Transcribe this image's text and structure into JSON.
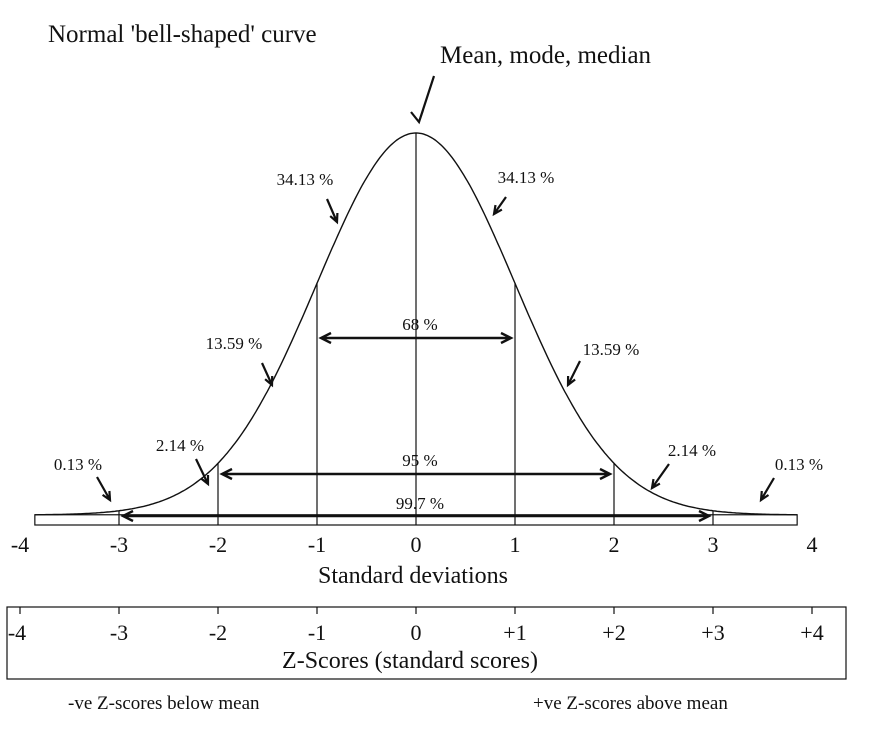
{
  "title": "Normal 'bell-shaped' curve",
  "peak_label": "Mean, mode, median",
  "region_labels": [
    {
      "text": "34.13 %",
      "side": "left",
      "at": -0.5
    },
    {
      "text": "34.13 %",
      "side": "right",
      "at": 0.5
    },
    {
      "text": "13.59 %",
      "side": "left",
      "at": -1.5
    },
    {
      "text": "13.59 %",
      "side": "right",
      "at": 1.5
    },
    {
      "text": "2.14 %",
      "side": "left",
      "at": -2.5
    },
    {
      "text": "2.14 %",
      "side": "right",
      "at": 2.5
    },
    {
      "text": "0.13 %",
      "side": "left",
      "at": -3.5
    },
    {
      "text": "0.13 %",
      "side": "right",
      "at": 3.5
    }
  ],
  "spans": [
    {
      "text": "68 %",
      "from": -1,
      "to": 1
    },
    {
      "text": "95 %",
      "from": -2,
      "to": 2
    },
    {
      "text": "99.7 %",
      "from": -3,
      "to": 3
    }
  ],
  "sd_ticks": [
    "-4",
    "-3",
    "-2",
    "-1",
    "0",
    "1",
    "2",
    "3",
    "4"
  ],
  "sd_axis_label": "Standard deviations",
  "z_ticks": [
    "-4",
    "-3",
    "-2",
    "-1",
    "0",
    "+1",
    "+2",
    "+3",
    "+4"
  ],
  "z_axis_label": "Z-Scores (standard scores)",
  "footer_left": "-ve Z-scores below mean",
  "footer_right": "+ve Z-scores above mean"
}
